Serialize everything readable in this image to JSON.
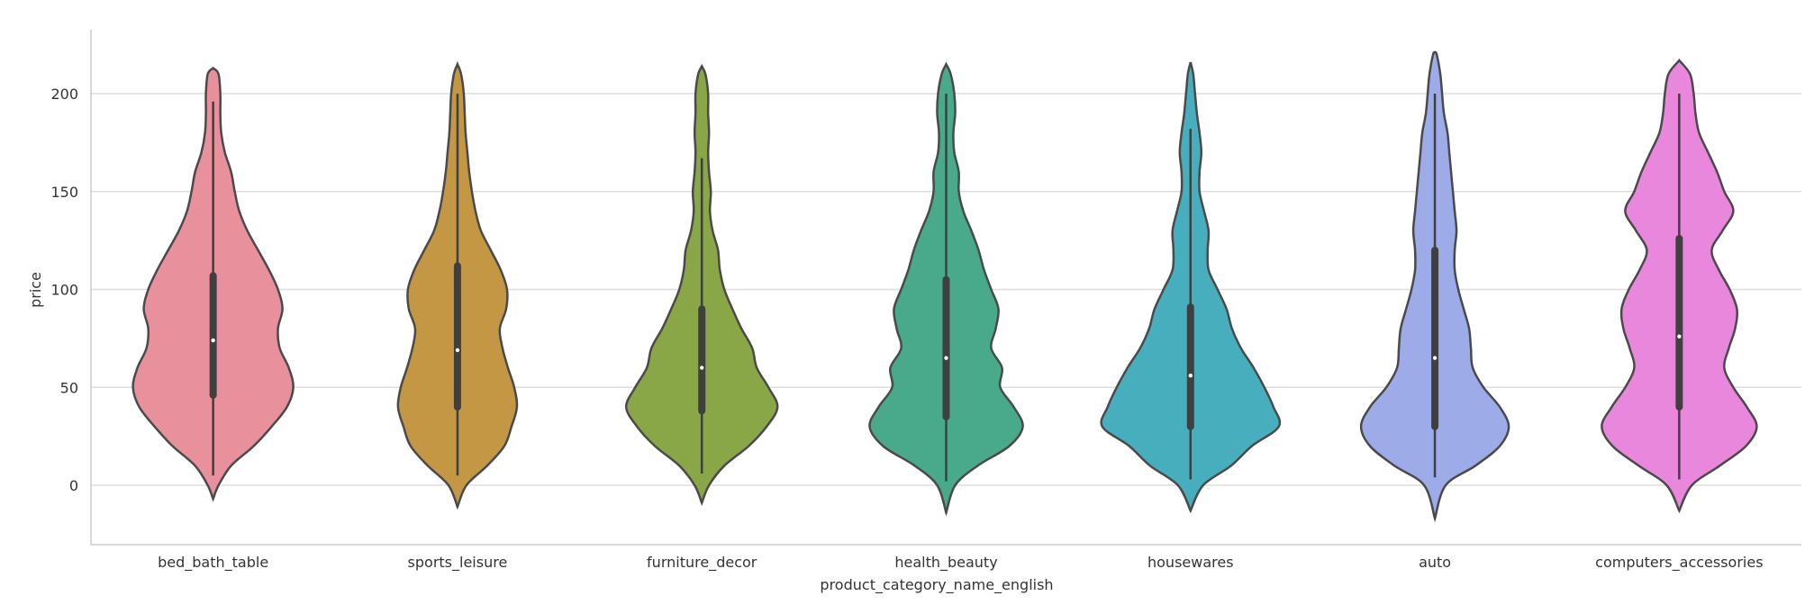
{
  "chart_data": {
    "type": "violin",
    "title": "",
    "xlabel": "product_category_name_english",
    "ylabel": "price",
    "ylim": [
      -30,
      232
    ],
    "yticks": [
      0,
      50,
      100,
      150,
      200
    ],
    "grid": "y",
    "categories": [
      {
        "name": "bed_bath_table",
        "color": "#E8919D",
        "median": 74,
        "q1": 46,
        "q3": 107,
        "whisker_low": 5,
        "whisker_high": 196,
        "profile": [
          [
            -7,
            0
          ],
          [
            0,
            6
          ],
          [
            10,
            20
          ],
          [
            20,
            45
          ],
          [
            30,
            65
          ],
          [
            40,
            82
          ],
          [
            50,
            89
          ],
          [
            60,
            84
          ],
          [
            70,
            74
          ],
          [
            80,
            72
          ],
          [
            90,
            77
          ],
          [
            100,
            72
          ],
          [
            110,
            62
          ],
          [
            120,
            50
          ],
          [
            130,
            38
          ],
          [
            140,
            29
          ],
          [
            150,
            24
          ],
          [
            160,
            20
          ],
          [
            170,
            13
          ],
          [
            180,
            9
          ],
          [
            190,
            8
          ],
          [
            200,
            8
          ],
          [
            210,
            6
          ],
          [
            213,
            0
          ]
        ]
      },
      {
        "name": "sports_leisure",
        "color": "#C49745",
        "median": 69,
        "q1": 40,
        "q3": 112,
        "whisker_low": 5,
        "whisker_high": 200,
        "profile": [
          [
            -11,
            0
          ],
          [
            0,
            10
          ],
          [
            10,
            33
          ],
          [
            20,
            52
          ],
          [
            30,
            60
          ],
          [
            40,
            66
          ],
          [
            50,
            63
          ],
          [
            60,
            56
          ],
          [
            70,
            50
          ],
          [
            80,
            47
          ],
          [
            90,
            54
          ],
          [
            100,
            55
          ],
          [
            110,
            48
          ],
          [
            120,
            37
          ],
          [
            130,
            26
          ],
          [
            140,
            20
          ],
          [
            150,
            16
          ],
          [
            160,
            13
          ],
          [
            170,
            11
          ],
          [
            180,
            9
          ],
          [
            190,
            8
          ],
          [
            200,
            7
          ],
          [
            210,
            4
          ],
          [
            215,
            0
          ]
        ]
      },
      {
        "name": "furniture_decor",
        "color": "#89A746",
        "median": 60,
        "q1": 38,
        "q3": 90,
        "whisker_low": 6,
        "whisker_high": 167,
        "profile": [
          [
            -9,
            0
          ],
          [
            0,
            8
          ],
          [
            10,
            25
          ],
          [
            20,
            52
          ],
          [
            30,
            72
          ],
          [
            40,
            84
          ],
          [
            50,
            74
          ],
          [
            60,
            61
          ],
          [
            70,
            56
          ],
          [
            80,
            44
          ],
          [
            90,
            34
          ],
          [
            100,
            25
          ],
          [
            110,
            20
          ],
          [
            120,
            18
          ],
          [
            130,
            12
          ],
          [
            140,
            9
          ],
          [
            150,
            10
          ],
          [
            160,
            8
          ],
          [
            170,
            7
          ],
          [
            180,
            8
          ],
          [
            190,
            7
          ],
          [
            200,
            7
          ],
          [
            210,
            4
          ],
          [
            214,
            0
          ]
        ]
      },
      {
        "name": "health_beauty",
        "color": "#48AA8B",
        "median": 65,
        "q1": 35,
        "q3": 105,
        "whisker_low": 2,
        "whisker_high": 200,
        "profile": [
          [
            -14,
            0
          ],
          [
            0,
            10
          ],
          [
            10,
            35
          ],
          [
            20,
            70
          ],
          [
            30,
            85
          ],
          [
            40,
            75
          ],
          [
            50,
            60
          ],
          [
            60,
            62
          ],
          [
            70,
            50
          ],
          [
            80,
            55
          ],
          [
            90,
            58
          ],
          [
            100,
            50
          ],
          [
            110,
            42
          ],
          [
            120,
            36
          ],
          [
            130,
            28
          ],
          [
            140,
            19
          ],
          [
            150,
            14
          ],
          [
            160,
            14
          ],
          [
            170,
            9
          ],
          [
            180,
            8
          ],
          [
            190,
            10
          ],
          [
            200,
            9
          ],
          [
            210,
            5
          ],
          [
            215,
            0
          ]
        ]
      },
      {
        "name": "housewares",
        "color": "#47AEBE",
        "median": 56,
        "q1": 30,
        "q3": 91,
        "whisker_low": 3,
        "whisker_high": 182,
        "profile": [
          [
            -13,
            0
          ],
          [
            0,
            14
          ],
          [
            10,
            45
          ],
          [
            20,
            68
          ],
          [
            30,
            98
          ],
          [
            40,
            92
          ],
          [
            50,
            82
          ],
          [
            60,
            70
          ],
          [
            70,
            56
          ],
          [
            80,
            46
          ],
          [
            90,
            40
          ],
          [
            100,
            30
          ],
          [
            110,
            20
          ],
          [
            120,
            19
          ],
          [
            130,
            20
          ],
          [
            140,
            15
          ],
          [
            150,
            10
          ],
          [
            160,
            10
          ],
          [
            170,
            12
          ],
          [
            180,
            10
          ],
          [
            190,
            7
          ],
          [
            200,
            5
          ],
          [
            210,
            3
          ],
          [
            216,
            0
          ]
        ]
      },
      {
        "name": "auto",
        "color": "#9DABE9",
        "median": 65,
        "q1": 30,
        "q3": 120,
        "whisker_low": 4,
        "whisker_high": 200,
        "profile": [
          [
            -17,
            0
          ],
          [
            0,
            12
          ],
          [
            10,
            45
          ],
          [
            20,
            72
          ],
          [
            30,
            82
          ],
          [
            40,
            72
          ],
          [
            50,
            54
          ],
          [
            60,
            42
          ],
          [
            70,
            40
          ],
          [
            80,
            38
          ],
          [
            90,
            32
          ],
          [
            100,
            26
          ],
          [
            110,
            22
          ],
          [
            120,
            22
          ],
          [
            130,
            24
          ],
          [
            140,
            22
          ],
          [
            150,
            20
          ],
          [
            160,
            18
          ],
          [
            170,
            16
          ],
          [
            180,
            14
          ],
          [
            190,
            10
          ],
          [
            200,
            8
          ],
          [
            210,
            6
          ],
          [
            220,
            2
          ],
          [
            221,
            0
          ]
        ]
      },
      {
        "name": "computers_accessories",
        "color": "#E887DC",
        "median": 76,
        "q1": 40,
        "q3": 126,
        "whisker_low": 3,
        "whisker_high": 200,
        "profile": [
          [
            -13,
            0
          ],
          [
            0,
            14
          ],
          [
            10,
            45
          ],
          [
            20,
            74
          ],
          [
            30,
            86
          ],
          [
            40,
            75
          ],
          [
            50,
            60
          ],
          [
            60,
            50
          ],
          [
            70,
            55
          ],
          [
            80,
            62
          ],
          [
            90,
            64
          ],
          [
            100,
            56
          ],
          [
            110,
            44
          ],
          [
            120,
            36
          ],
          [
            130,
            48
          ],
          [
            140,
            60
          ],
          [
            150,
            50
          ],
          [
            160,
            42
          ],
          [
            170,
            32
          ],
          [
            180,
            22
          ],
          [
            190,
            18
          ],
          [
            200,
            16
          ],
          [
            210,
            12
          ],
          [
            217,
            0
          ]
        ]
      }
    ]
  }
}
